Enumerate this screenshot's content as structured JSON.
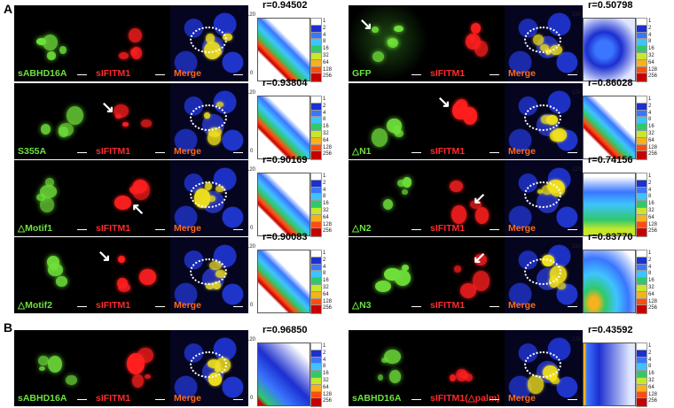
{
  "panel_letters": [
    "A",
    "B"
  ],
  "scalebar_label": "",
  "legend_ticks": [
    "1",
    "2",
    "4",
    "8",
    "16",
    "32",
    "64",
    "128",
    "256"
  ],
  "legend_colors": [
    "#ffffff",
    "#1c2fd0",
    "#3a76ff",
    "#3fc3ff",
    "#2fc96a",
    "#c7e82a",
    "#f6b21b",
    "#ff4d0f",
    "#c40000"
  ],
  "axis": {
    "max": "120",
    "min": "0"
  },
  "rows": [
    {
      "green": "sABHD16A",
      "red": "sIFITM1",
      "merge": "Merge",
      "r": "r=0.94502"
    },
    {
      "green": "S355A",
      "red": "sIFITM1",
      "merge": "Merge",
      "r": "r=0.93804"
    },
    {
      "green": "△Motif1",
      "red": "sIFITM1",
      "merge": "Merge",
      "r": "r=0.90169"
    },
    {
      "green": "△Motif2",
      "red": "sIFITM1",
      "merge": "Merge",
      "r": "r=0.90083"
    },
    {
      "green": "GFP",
      "red": "sIFITM1",
      "merge": "Merge",
      "r": "r=0.50798"
    },
    {
      "green": "△N1",
      "red": "sIFITM1",
      "merge": "Merge",
      "r": "r=0.86028"
    },
    {
      "green": "△N2",
      "red": "sIFITM1",
      "merge": "Merge",
      "r": "r=0.74156"
    },
    {
      "green": "△N3",
      "red": "sIFITM1",
      "merge": "Merge",
      "r": "r=0.83770"
    },
    {
      "green": "sABHD16A",
      "red": "sIFITM1",
      "merge": "Merge",
      "r": "r=0.96850"
    },
    {
      "green": "sABHD16A",
      "red": "sIFITM1(△palm)",
      "merge": "Merge",
      "r": "r=0.43592"
    }
  ]
}
